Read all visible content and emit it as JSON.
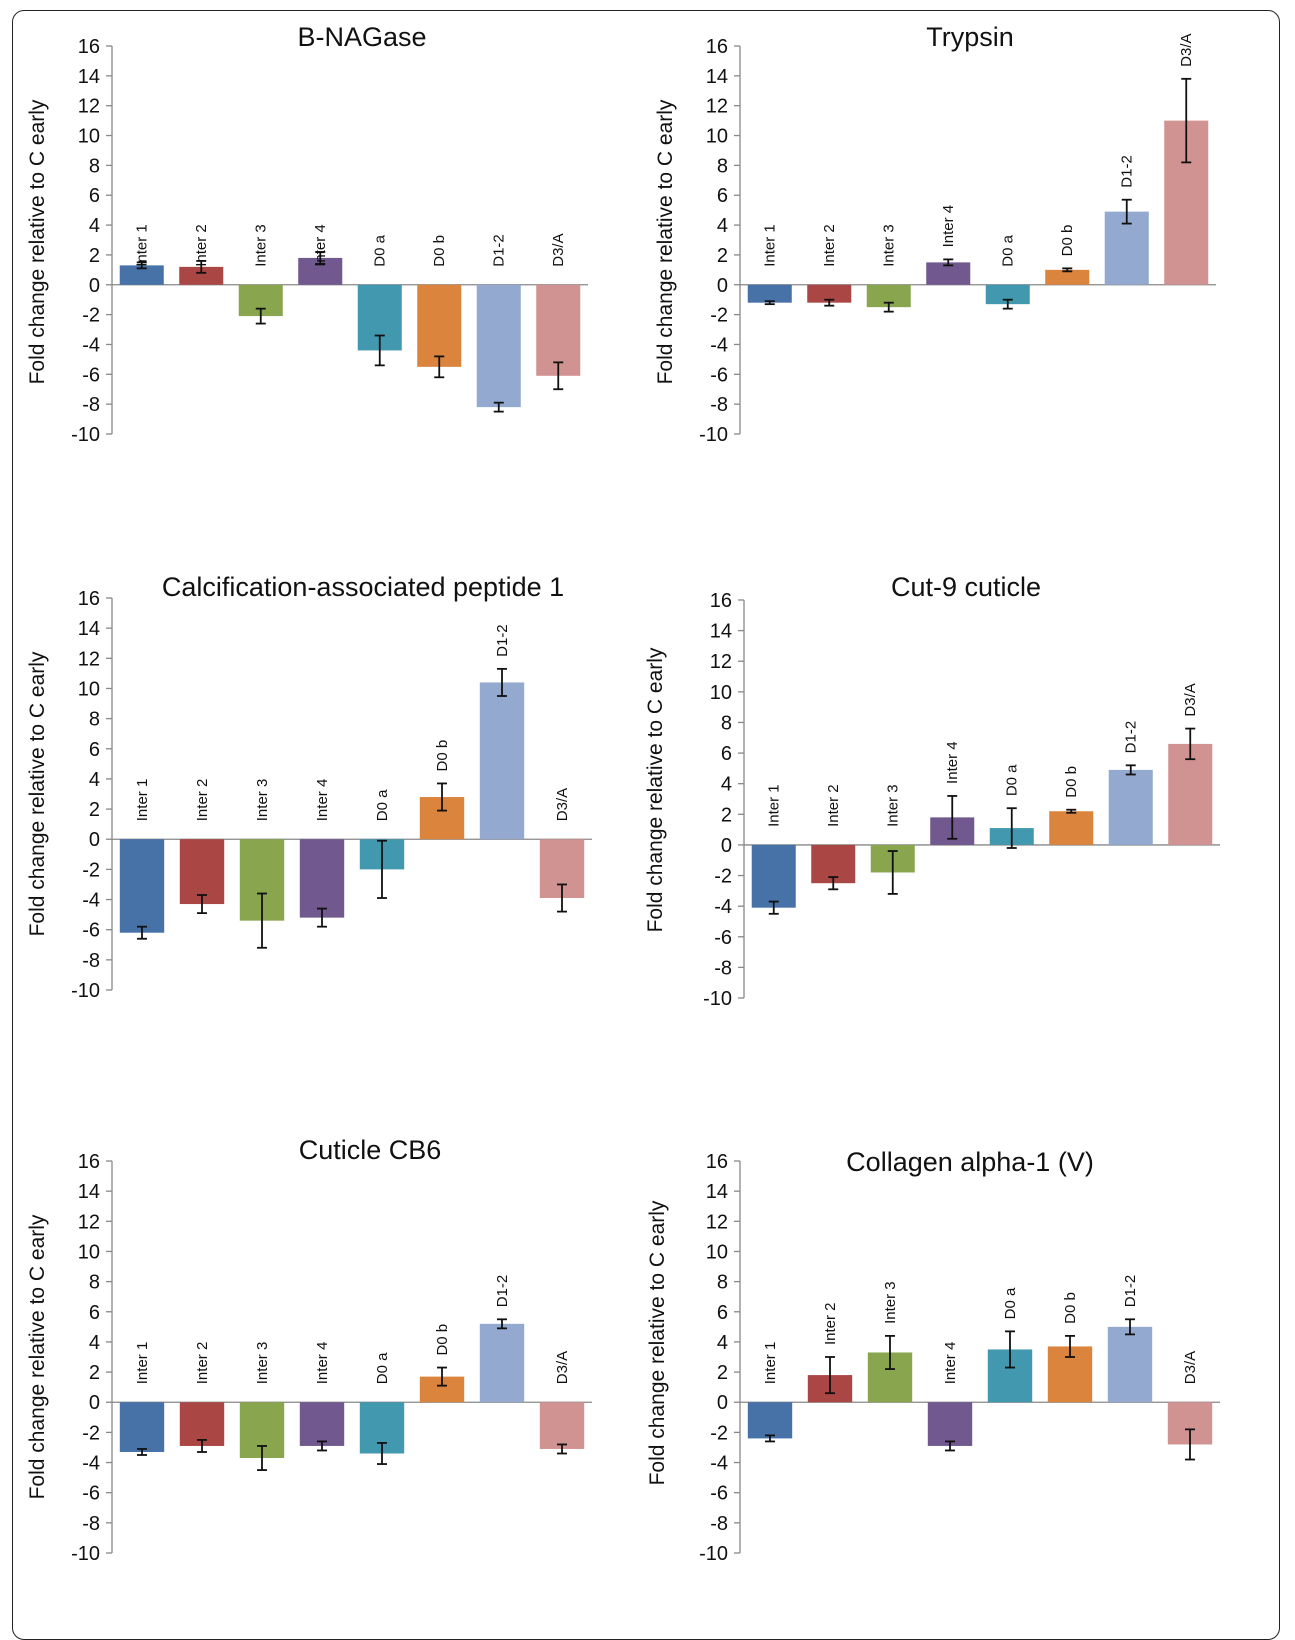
{
  "chart_data": [
    {
      "type": "bar",
      "title": "B-NAGase",
      "ylabel": "Fold change relative to C early",
      "categories": [
        "Inter 1",
        "Inter 2",
        "Inter 3",
        "Inter 4",
        "D0 a",
        "D0 b",
        "D1-2",
        "D3/A"
      ],
      "values": [
        1.3,
        1.2,
        -2.1,
        1.8,
        -4.4,
        -5.5,
        -8.2,
        -6.1
      ],
      "errors": [
        0.2,
        0.4,
        0.5,
        0.4,
        1.0,
        0.7,
        0.3,
        0.9
      ],
      "ylim": [
        -10,
        16
      ],
      "yticks": [
        16,
        14,
        12,
        10,
        8,
        6,
        4,
        2,
        0,
        -2,
        -4,
        -6,
        -8,
        -10
      ],
      "label_side": [
        0,
        0,
        0,
        0,
        0,
        0,
        0,
        0
      ],
      "legend": "none",
      "grid": false
    },
    {
      "type": "bar",
      "title": "Trypsin",
      "ylabel": "Fold change relative to C early",
      "categories": [
        "Inter 1",
        "Inter 2",
        "Inter 3",
        "Inter 4",
        "D0 a",
        "D0 b",
        "D1-2",
        "D3/A"
      ],
      "values": [
        -1.2,
        -1.2,
        -1.5,
        1.5,
        -1.3,
        1.0,
        4.9,
        11.0
      ],
      "errors": [
        0.1,
        0.2,
        0.3,
        0.2,
        0.3,
        0.1,
        0.8,
        2.8
      ],
      "ylim": [
        -10,
        16
      ],
      "yticks": [
        16,
        14,
        12,
        10,
        8,
        6,
        4,
        2,
        0,
        -2,
        -4,
        -6,
        -8,
        -10
      ],
      "label_side": [
        0,
        0,
        0,
        1,
        0,
        1,
        1,
        1
      ],
      "legend": "none",
      "grid": false
    },
    {
      "type": "bar",
      "title": "Calcification-associated peptide 1",
      "ylabel": "Fold change relative to C early",
      "categories": [
        "Inter 1",
        "Inter 2",
        "Inter 3",
        "Inter 4",
        "D0 a",
        "D0 b",
        "D1-2",
        "D3/A"
      ],
      "values": [
        -6.2,
        -4.3,
        -5.4,
        -5.2,
        -2.0,
        2.8,
        10.4,
        -3.9
      ],
      "errors": [
        0.4,
        0.6,
        1.8,
        0.6,
        1.9,
        0.9,
        0.9,
        0.9
      ],
      "ylim": [
        -10,
        16
      ],
      "yticks": [
        16,
        14,
        12,
        10,
        8,
        6,
        4,
        2,
        0,
        -2,
        -4,
        -6,
        -8,
        -10
      ],
      "label_side": [
        0,
        0,
        0,
        0,
        0,
        1,
        1,
        0
      ],
      "legend": "none",
      "grid": false
    },
    {
      "type": "bar",
      "title": "Cut-9 cuticle",
      "ylabel": "Fold change relative to C early",
      "categories": [
        "Inter 1",
        "Inter 2",
        "Inter 3",
        "Inter 4",
        "D0 a",
        "D0 b",
        "D1-2",
        "D3/A"
      ],
      "values": [
        -4.1,
        -2.5,
        -1.8,
        1.8,
        1.1,
        2.2,
        4.9,
        6.6
      ],
      "errors": [
        0.4,
        0.4,
        1.4,
        1.4,
        1.3,
        0.1,
        0.3,
        1.0
      ],
      "ylim": [
        -10,
        16
      ],
      "yticks": [
        16,
        14,
        12,
        10,
        8,
        6,
        4,
        2,
        0,
        -2,
        -4,
        -6,
        -8,
        -10
      ],
      "label_side": [
        0,
        0,
        0,
        1,
        1,
        1,
        1,
        1
      ],
      "legend": "none",
      "grid": false
    },
    {
      "type": "bar",
      "title": "Cuticle CB6",
      "ylabel": "Fold change relative to C early",
      "categories": [
        "Inter 1",
        "Inter 2",
        "Inter 3",
        "Inter 4",
        "D0 a",
        "D0 b",
        "D1-2",
        "D3/A"
      ],
      "values": [
        -3.3,
        -2.9,
        -3.7,
        -2.9,
        -3.4,
        1.7,
        5.2,
        -3.1
      ],
      "errors": [
        0.2,
        0.4,
        0.8,
        0.3,
        0.7,
        0.6,
        0.3,
        0.3
      ],
      "ylim": [
        -10,
        16
      ],
      "yticks": [
        16,
        14,
        12,
        10,
        8,
        6,
        4,
        2,
        0,
        -2,
        -4,
        -6,
        -8,
        -10
      ],
      "label_side": [
        0,
        0,
        0,
        0,
        0,
        1,
        1,
        0
      ],
      "legend": "none",
      "grid": false
    },
    {
      "type": "bar",
      "title": "Collagen alpha-1 (V)",
      "ylabel": "Fold change relative to C early",
      "categories": [
        "Inter 1",
        "Inter 2",
        "Inter 3",
        "Inter 4",
        "D0 a",
        "D0 b",
        "D1-2",
        "D3/A"
      ],
      "values": [
        -2.4,
        1.8,
        3.3,
        -2.9,
        3.5,
        3.7,
        5.0,
        -2.8
      ],
      "errors": [
        0.2,
        1.2,
        1.1,
        0.3,
        1.2,
        0.7,
        0.5,
        1.0
      ],
      "ylim": [
        -10,
        16
      ],
      "yticks": [
        16,
        14,
        12,
        10,
        8,
        6,
        4,
        2,
        0,
        -2,
        -4,
        -6,
        -8,
        -10
      ],
      "label_side": [
        0,
        1,
        1,
        0,
        1,
        1,
        1,
        0
      ],
      "legend": "none",
      "grid": false
    }
  ],
  "colors": [
    "#4672a8",
    "#aa4643",
    "#89a54e",
    "#71588f",
    "#4198af",
    "#db843d",
    "#93a9cf",
    "#d19392"
  ]
}
